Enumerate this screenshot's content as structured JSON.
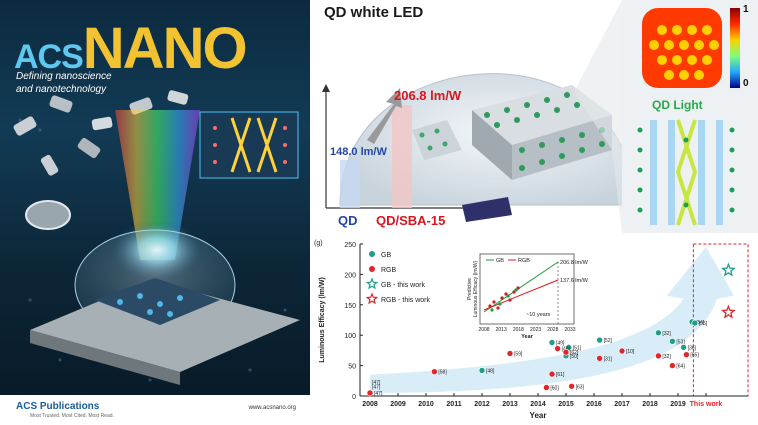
{
  "cover": {
    "brand_acs": "ACS",
    "brand_nano": "NANO",
    "tagline_line1": "Defining nanoscience",
    "tagline_line2": "and nanotechnology",
    "publisher": "ACS Publications",
    "publisher_sub": "Most Trusted. Most Cited. Most Read.",
    "url": "www.acsnano.org"
  },
  "led": {
    "title": "QD white LED",
    "value_sba": "206.8 lm/W",
    "value_qd": "148.0 lm/W",
    "label_qd": "QD",
    "label_sba": "QD/SBA-15",
    "colorbar_max": "1",
    "colorbar_min": "0",
    "qd_light": "QD Light"
  },
  "plot": {
    "panel_label": "(g)",
    "legend": [
      "GB",
      "RGB",
      "GB - this work",
      "RGB - this work"
    ],
    "colors": {
      "gb": "#1e9d8a",
      "rgb": "#e0262b",
      "arrow": "#cfe8f7",
      "box": "#e0262b"
    }
  },
  "inset": {
    "legend_gb": "GB",
    "legend_rgb": "RGB",
    "ylabel_1": "Predictive",
    "ylabel_2": "Luminous Efficacy (lm/W)",
    "xlabel": "Year",
    "value_gb": "206.8 lm/W",
    "value_rgb": "137.6 lm/W",
    "ten_years": "~10 years",
    "ticks": [
      "2008",
      "2013",
      "2018",
      "2023",
      "2028",
      "2033"
    ]
  },
  "chart_data": {
    "type": "scatter",
    "title": "",
    "xlabel": "Year",
    "ylabel": "Luminous Efficacy (lm/W)",
    "ylim": [
      0,
      250
    ],
    "x_categories": [
      "2008",
      "2009",
      "2010",
      "2011",
      "2012",
      "2013",
      "2014",
      "2015",
      "2016",
      "2017",
      "2018",
      "2019",
      "This work"
    ],
    "y_ticks": [
      "0",
      "50",
      "100",
      "150",
      "200",
      "250"
    ],
    "series": [
      {
        "name": "GB",
        "points": [
          {
            "x": 12.0,
            "y": 42,
            "label": "[48]"
          },
          {
            "x": 14.5,
            "y": 88,
            "label": "[49]"
          },
          {
            "x": 15.0,
            "y": 66,
            "label": "[50]"
          },
          {
            "x": 15.1,
            "y": 80,
            "label": "[51]"
          },
          {
            "x": 16.2,
            "y": 92,
            "label": "[52]"
          },
          {
            "x": 18.3,
            "y": 104,
            "label": "[32]"
          },
          {
            "x": 18.8,
            "y": 90,
            "label": "[53]"
          },
          {
            "x": 19.2,
            "y": 80,
            "label": "[36]"
          },
          {
            "x": 19.5,
            "y": 122,
            "label": "[54]"
          },
          {
            "x": 19.6,
            "y": 120,
            "label": "[55]"
          }
        ]
      },
      {
        "name": "RGB",
        "points": [
          {
            "x": 8.0,
            "y": 5,
            "label": "[47]"
          },
          {
            "x": 10.3,
            "y": 40,
            "label": "[58]"
          },
          {
            "x": 13.0,
            "y": 70,
            "label": "[59]"
          },
          {
            "x": 14.3,
            "y": 14,
            "label": "[60]"
          },
          {
            "x": 14.5,
            "y": 36,
            "label": "[61]"
          },
          {
            "x": 14.7,
            "y": 78,
            "label": "[49]"
          },
          {
            "x": 15.0,
            "y": 72,
            "label": "[62]"
          },
          {
            "x": 15.2,
            "y": 16,
            "label": "[63]"
          },
          {
            "x": 16.2,
            "y": 62,
            "label": "[31]"
          },
          {
            "x": 17.0,
            "y": 74,
            "label": "[10]"
          },
          {
            "x": 18.3,
            "y": 66,
            "label": "[32]"
          },
          {
            "x": 18.8,
            "y": 50,
            "label": "[64]"
          },
          {
            "x": 19.3,
            "y": 68,
            "label": "[65]"
          }
        ]
      },
      {
        "name": "GB - this work",
        "points": [
          {
            "x": 20.8,
            "y": 206.8
          }
        ]
      },
      {
        "name": "RGB - this work",
        "points": [
          {
            "x": 20.8,
            "y": 137.6
          }
        ]
      }
    ],
    "extra_labels": [
      "[47]",
      "[47]"
    ]
  }
}
